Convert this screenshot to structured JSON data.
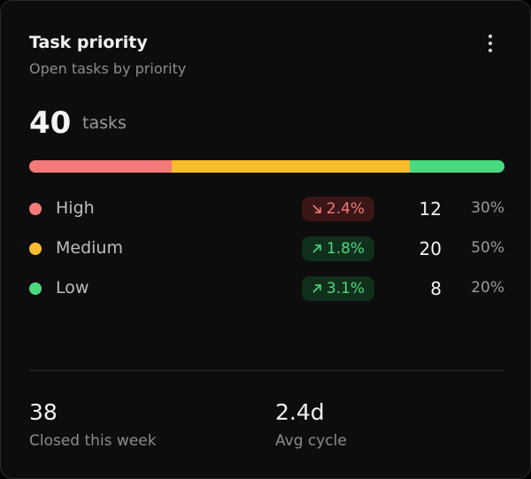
{
  "header": {
    "title": "Task priority",
    "subtitle": "Open tasks by priority"
  },
  "total": {
    "value": 40,
    "unit": "tasks"
  },
  "priorities": [
    {
      "name": "High",
      "color": "#f47a7a",
      "change": "2.4%",
      "direction": "down",
      "count": 12,
      "share": "30%"
    },
    {
      "name": "Medium",
      "color": "#f9bd2b",
      "change": "1.8%",
      "direction": "up",
      "count": 20,
      "share": "50%"
    },
    {
      "name": "Low",
      "color": "#4ad97e",
      "change": "3.1%",
      "direction": "up",
      "count": 8,
      "share": "20%"
    }
  ],
  "footer": [
    {
      "value": "38",
      "label": "Closed this week"
    },
    {
      "value": "2.4d",
      "label": "Avg cycle"
    }
  ]
}
